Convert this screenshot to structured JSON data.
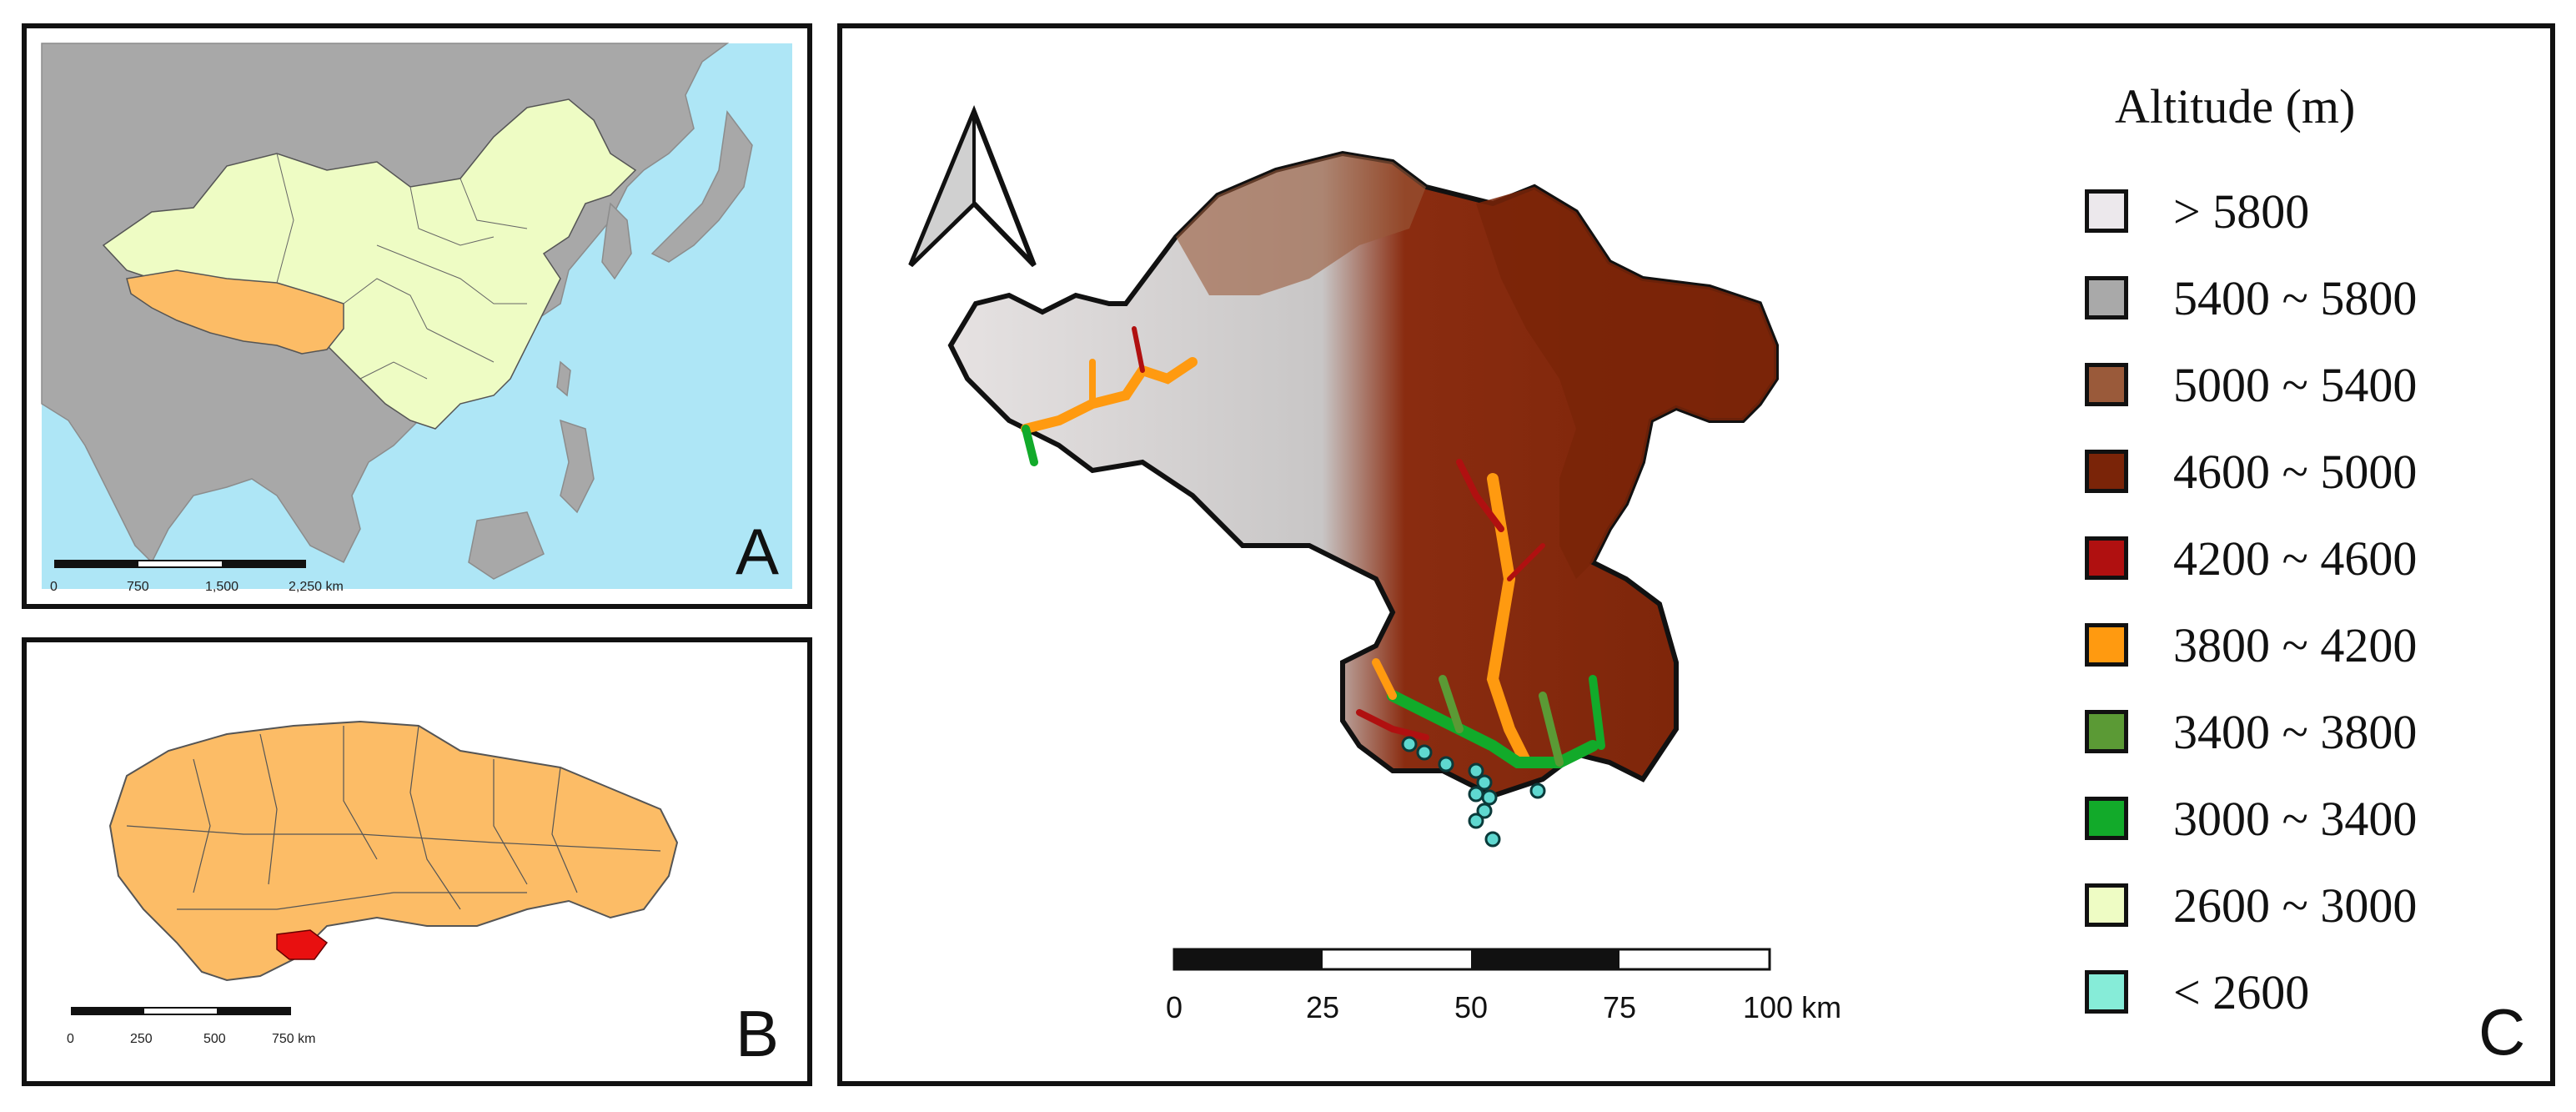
{
  "panels": {
    "a": {
      "letter": "A",
      "scale_ticks": [
        "0",
        "750",
        "1,500",
        "2,250 km"
      ]
    },
    "b": {
      "letter": "B",
      "scale_ticks": [
        "0",
        "250",
        "500",
        "750 km"
      ]
    },
    "c": {
      "letter": "C",
      "scale_ticks": [
        "0",
        "25",
        "50",
        "75",
        "100 km"
      ]
    }
  },
  "legend": {
    "title": "Altitude (m)",
    "items": [
      {
        "label": "> 5800",
        "color": "#ece8ec"
      },
      {
        "label": "5400 ~ 5800",
        "color": "#a9a9a9"
      },
      {
        "label": "5000 ~ 5400",
        "color": "#9a5a3a"
      },
      {
        "label": "4600 ~ 5000",
        "color": "#7a2408"
      },
      {
        "label": "4200 ~ 4600",
        "color": "#b01010"
      },
      {
        "label": "3800 ~ 4200",
        "color": "#ff9a10"
      },
      {
        "label": "3400 ~ 3800",
        "color": "#5b9a35"
      },
      {
        "label": "3000 ~ 3400",
        "color": "#12aa2a"
      },
      {
        "label": "2600 ~ 3000",
        "color": "#eefcc4"
      },
      {
        "label": "< 2600",
        "color": "#86ecd8"
      }
    ]
  },
  "colors": {
    "ocean": "#aee6f6",
    "land": "#a8a8a8",
    "china": "#eefcc4",
    "tibet": "#fcbc66",
    "highlight": "#e81010",
    "sample_point": "#5fd8d0"
  }
}
